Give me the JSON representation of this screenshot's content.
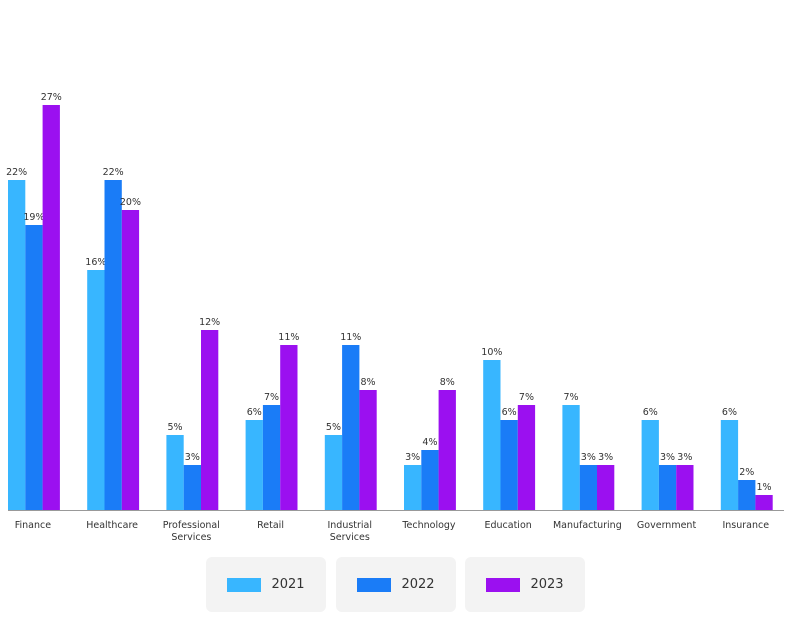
{
  "chart_data": {
    "type": "bar",
    "categories": [
      "Finance",
      "Healthcare",
      "Professional Services",
      "Retail",
      "Industrial Services",
      "Technology",
      "Education",
      "Manufacturing",
      "Government",
      "Insurance"
    ],
    "series": [
      {
        "name": "2021",
        "color": "#38b6ff",
        "values": [
          22,
          16,
          5,
          6,
          5,
          3,
          10,
          7,
          6,
          6
        ],
        "value_labels": [
          "22%",
          "16%",
          "5%",
          "6%",
          "5%",
          "3%",
          "10%",
          "7%",
          "6%",
          "6%"
        ]
      },
      {
        "name": "2022",
        "color": "#1a7cf7",
        "values": [
          19,
          22,
          3,
          7,
          11,
          4,
          6,
          3,
          3,
          2
        ],
        "value_labels": [
          "19%",
          "22%",
          "3%",
          "7%",
          "11%",
          "4%",
          "6%",
          "3%",
          "3%",
          "2%"
        ]
      },
      {
        "name": "2023",
        "color": "#9b10f0",
        "values": [
          27,
          20,
          12,
          11,
          8,
          8,
          7,
          3,
          3,
          1
        ],
        "value_labels": [
          "27%",
          "20%",
          "12%",
          "11%",
          "8%",
          "8%",
          "7%",
          "3%",
          "3%",
          "1%"
        ]
      }
    ]
  }
}
